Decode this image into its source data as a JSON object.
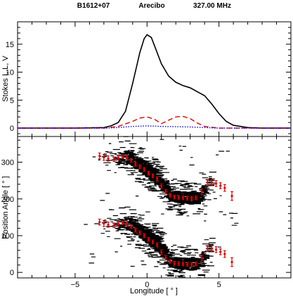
{
  "chart_data": [
    {
      "type": "line",
      "header": {
        "source": "B1612+07",
        "telescope": "Arecibo",
        "frequency": "327.00 MHz"
      },
      "ylabel": "Stokes I, L, V",
      "xlim": [
        -9,
        10
      ],
      "ylim": [
        -1.5,
        19
      ],
      "xticks": [
        -5,
        0,
        5
      ],
      "yticks": [
        0,
        5,
        10,
        15
      ],
      "colors": {
        "I": "#000000",
        "L": "#e00000",
        "V": "#0000ff"
      },
      "series": [
        {
          "key": "I",
          "style": "solid",
          "x": [
            -9,
            -5,
            -3,
            -2.5,
            -2,
            -1.5,
            -1,
            -0.5,
            -0.2,
            0,
            0.3,
            0.6,
            1.0,
            1.5,
            2.0,
            2.5,
            3.0,
            3.5,
            4.0,
            4.5,
            5.0,
            5.5,
            6,
            7,
            8,
            10
          ],
          "y": [
            0,
            0,
            0.1,
            0.4,
            1.0,
            3.0,
            8.0,
            13.5,
            16.0,
            16.7,
            16.2,
            14.2,
            11.5,
            9.3,
            8.2,
            7.6,
            7.2,
            6.5,
            5.8,
            4.3,
            2.6,
            1.2,
            0.5,
            0.1,
            0,
            0
          ]
        },
        {
          "key": "L",
          "style": "dashed",
          "x": [
            -9,
            -3,
            -2,
            -1,
            -0.5,
            0,
            0.5,
            1.0,
            1.5,
            2.0,
            2.5,
            3.0,
            3.5,
            4.0,
            5,
            10
          ],
          "y": [
            0,
            0,
            0.3,
            1.2,
            1.8,
            2.0,
            1.6,
            0.8,
            1.4,
            2.0,
            2.1,
            1.7,
            0.9,
            0.3,
            0,
            0
          ]
        },
        {
          "key": "V",
          "style": "dotted",
          "x": [
            -9,
            -3,
            -2,
            -1,
            0,
            1,
            2,
            3,
            4,
            5,
            10
          ],
          "y": [
            0,
            0,
            0.1,
            0.3,
            0.4,
            0.3,
            0.25,
            0.2,
            0.1,
            0,
            0
          ]
        }
      ]
    },
    {
      "type": "scatter",
      "xlabel": "Longitude [ ° ]",
      "ylabel": "Position Angle [ ° ]",
      "xlim": [
        -9,
        10
      ],
      "ylim": [
        -15,
        370
      ],
      "xticks": [
        -5,
        0,
        5
      ],
      "yticks": [
        0,
        100,
        200,
        300
      ],
      "colors": {
        "points": "#e00000",
        "density": "#000000"
      },
      "points": {
        "x": [
          -3.3,
          -3.0,
          -2.7,
          -2.3,
          -2.0,
          -1.7,
          -1.4,
          -1.1,
          -0.8,
          -0.5,
          -0.2,
          0.1,
          0.4,
          0.7,
          1.0,
          1.3,
          1.6,
          1.9,
          2.2,
          2.5,
          2.8,
          3.1,
          3.4,
          3.8,
          4.2,
          4.5,
          4.8,
          5.1,
          5.4,
          5.9
        ],
        "y": [
          137,
          133,
          130,
          128,
          132,
          135,
          132,
          125,
          115,
          108,
          100,
          90,
          83,
          75,
          55,
          40,
          30,
          25,
          24,
          23,
          22,
          22,
          23,
          40,
          65,
          65,
          62,
          56,
          50,
          28
        ],
        "err": [
          8,
          8,
          7,
          6,
          6,
          5,
          5,
          5,
          5,
          5,
          5,
          5,
          5,
          5,
          6,
          6,
          5,
          5,
          5,
          5,
          5,
          5,
          5,
          7,
          8,
          8,
          8,
          8,
          9,
          12
        ],
        "wrap": 180
      }
    }
  ]
}
